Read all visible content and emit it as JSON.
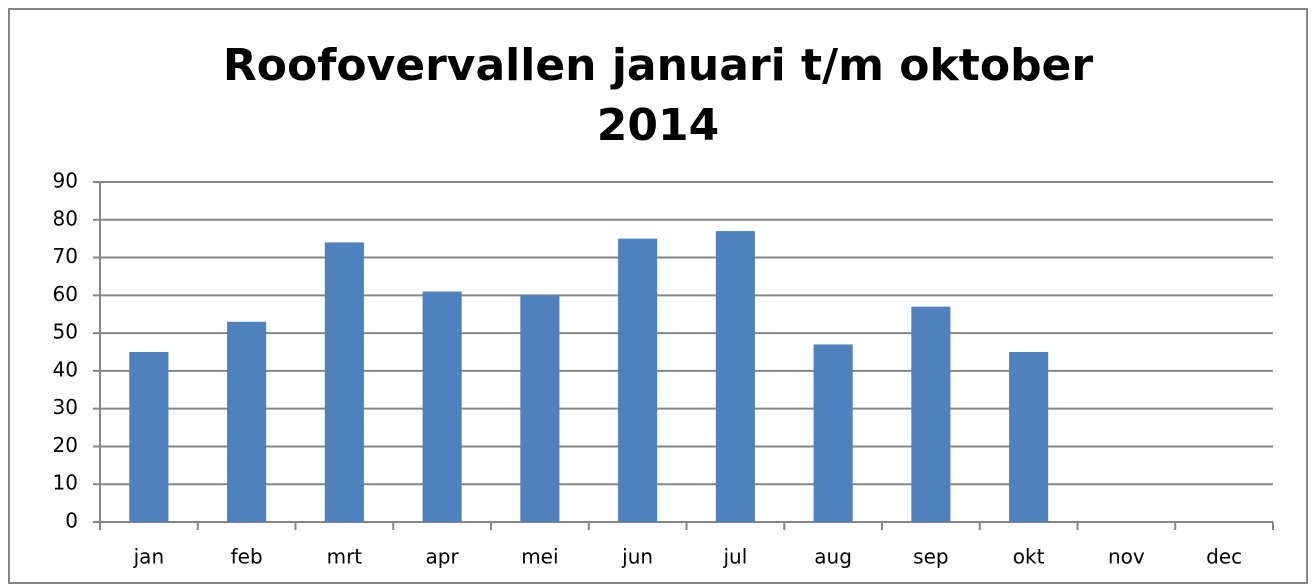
{
  "chart_data": {
    "type": "bar",
    "title": "Roofovervallen januari t/m oktober 2014",
    "categories": [
      "jan",
      "feb",
      "mrt",
      "apr",
      "mei",
      "jun",
      "jul",
      "aug",
      "sep",
      "okt",
      "nov",
      "dec"
    ],
    "values": [
      45,
      53,
      74,
      61,
      60,
      75,
      77,
      47,
      57,
      45,
      null,
      null
    ],
    "color": "#4f81bd",
    "ylim": [
      0,
      90
    ],
    "yticks": [
      0,
      10,
      20,
      30,
      40,
      50,
      60,
      70,
      80,
      90
    ],
    "grid": true
  }
}
